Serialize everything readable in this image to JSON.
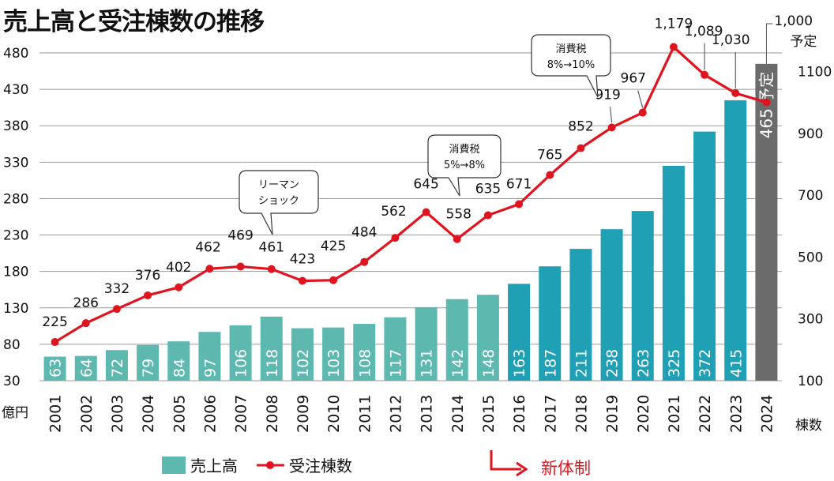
{
  "title": "売上高と受注棟数の推移",
  "chart_data": {
    "type": "bar+line",
    "categories": [
      "2001",
      "2002",
      "2003",
      "2004",
      "2005",
      "2006",
      "2007",
      "2008",
      "2009",
      "2010",
      "2011",
      "2012",
      "2013",
      "2014",
      "2015",
      "2016",
      "2017",
      "2018",
      "2019",
      "2020",
      "2021",
      "2022",
      "2023",
      "2024"
    ],
    "series": [
      {
        "name": "売上高",
        "type": "bar",
        "axis": "left",
        "values": [
          63,
          64,
          72,
          79,
          84,
          97,
          106,
          118,
          102,
          103,
          108,
          117,
          131,
          142,
          148,
          163,
          187,
          211,
          238,
          263,
          325,
          372,
          415,
          465
        ],
        "labels": [
          "63",
          "64",
          "72",
          "79",
          "84",
          "97",
          "106",
          "118",
          "102",
          "103",
          "108",
          "117",
          "131",
          "142",
          "148",
          "163",
          "187",
          "211",
          "238",
          "263",
          "325",
          "372",
          "415",
          "465 予定"
        ]
      },
      {
        "name": "受注棟数",
        "type": "line",
        "axis": "right",
        "values": [
          225,
          286,
          332,
          376,
          402,
          462,
          469,
          461,
          423,
          425,
          484,
          562,
          645,
          558,
          635,
          671,
          765,
          852,
          919,
          967,
          1179,
          1089,
          1030,
          1000
        ],
        "labels": [
          "225",
          "286",
          "332",
          "376",
          "402",
          "462",
          "469",
          "461",
          "423",
          "425",
          "484",
          "562",
          "645",
          "558",
          "635",
          "671",
          "765",
          "852",
          "919",
          "967",
          "1,179",
          "1,089",
          "1,030",
          "1,000"
        ]
      }
    ],
    "left_axis": {
      "unit": "億円",
      "ylim": [
        30,
        480
      ],
      "ticks": [
        "30",
        "80",
        "130",
        "180",
        "230",
        "280",
        "330",
        "380",
        "430",
        "480"
      ]
    },
    "right_axis": {
      "unit": "棟数",
      "ylim": [
        100,
        1160
      ],
      "ticks": [
        "100",
        "300",
        "500",
        "700",
        "900",
        "1100"
      ]
    },
    "annotations": [
      {
        "lines": [
          "リーマン",
          "ショック"
        ],
        "year": "2008"
      },
      {
        "lines": [
          "消費税",
          "5%→8%"
        ],
        "year": "2014"
      },
      {
        "lines": [
          "消費税",
          "8%→10%"
        ],
        "year": "2019"
      }
    ],
    "last_point_note": "予定",
    "new_system": {
      "label": "新体制",
      "from": "2016"
    },
    "bar_colors": {
      "before": "#5db8b0",
      "new": "#1fa0b4",
      "planned": "#6b6b6b"
    },
    "line_color": "#e0141e",
    "grid": true,
    "legend": {
      "position": "bottom-left"
    }
  }
}
